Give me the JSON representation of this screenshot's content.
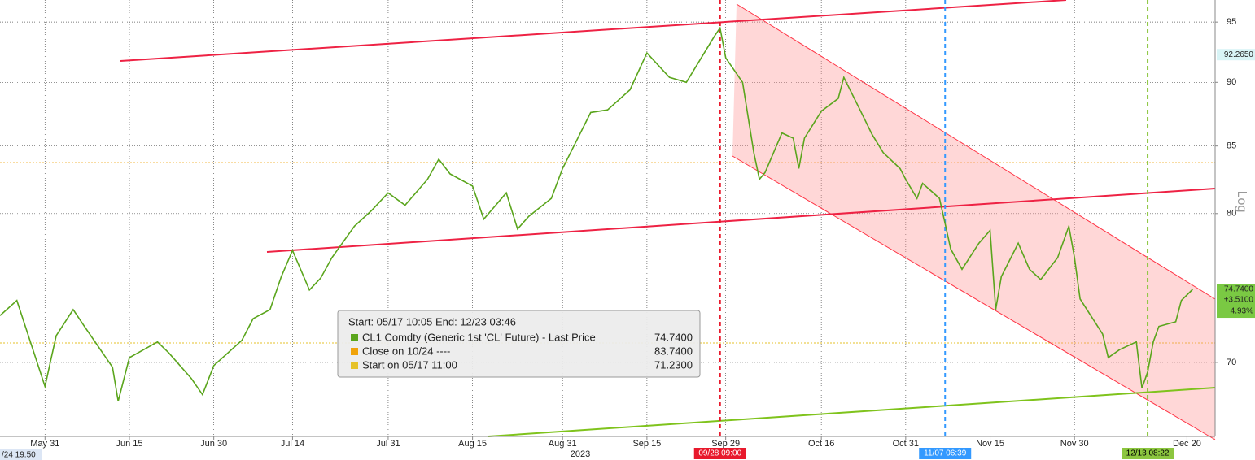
{
  "chart_data": {
    "type": "line",
    "log_scale": true,
    "grid": true,
    "x": [
      "2023-05-23",
      "2023-05-26",
      "2023-05-31",
      "2023-06-01",
      "2023-06-02",
      "2023-06-05",
      "2023-06-07",
      "2023-06-12",
      "2023-06-13",
      "2023-06-15",
      "2023-06-20",
      "2023-06-22",
      "2023-06-26",
      "2023-06-28",
      "2023-06-30",
      "2023-07-05",
      "2023-07-07",
      "2023-07-10",
      "2023-07-12",
      "2023-07-14",
      "2023-07-17",
      "2023-07-19",
      "2023-07-21",
      "2023-07-25",
      "2023-07-28",
      "2023-07-31",
      "2023-08-03",
      "2023-08-07",
      "2023-08-09",
      "2023-08-11",
      "2023-08-15",
      "2023-08-17",
      "2023-08-21",
      "2023-08-23",
      "2023-08-25",
      "2023-08-29",
      "2023-08-31",
      "2023-09-05",
      "2023-09-08",
      "2023-09-12",
      "2023-09-14",
      "2023-09-15",
      "2023-09-19",
      "2023-09-22",
      "2023-09-27",
      "2023-09-28",
      "2023-09-29",
      "2023-10-02",
      "2023-10-04",
      "2023-10-05",
      "2023-10-06",
      "2023-10-09",
      "2023-10-11",
      "2023-10-12",
      "2023-10-13",
      "2023-10-16",
      "2023-10-19",
      "2023-10-20",
      "2023-10-23",
      "2023-10-25",
      "2023-10-27",
      "2023-10-30",
      "2023-10-31",
      "2023-11-02",
      "2023-11-03",
      "2023-11-06",
      "2023-11-07",
      "2023-11-08",
      "2023-11-10",
      "2023-11-13",
      "2023-11-15",
      "2023-11-16",
      "2023-11-17",
      "2023-11-20",
      "2023-11-22",
      "2023-11-24",
      "2023-11-27",
      "2023-11-29",
      "2023-11-30",
      "2023-12-01",
      "2023-12-05",
      "2023-12-06",
      "2023-12-08",
      "2023-12-11",
      "2023-12-12",
      "2023-12-13",
      "2023-12-14",
      "2023-12-15",
      "2023-12-18",
      "2023-12-19",
      "2023-12-21"
    ],
    "series": [
      {
        "name": "CL1 Comdty (Generic 1st 'CL' Future) - Last Price",
        "color": "#5aa51c",
        "values": [
          73.0,
          74.0,
          68.5,
          70.1,
          71.7,
          73.4,
          72.3,
          69.7,
          67.6,
          70.3,
          71.3,
          70.6,
          69.0,
          68.0,
          69.8,
          71.4,
          72.8,
          73.4,
          75.6,
          77.4,
          74.7,
          75.5,
          76.9,
          79.1,
          80.2,
          81.5,
          80.6,
          82.5,
          84.0,
          82.9,
          82.0,
          79.6,
          81.5,
          78.9,
          79.8,
          81.1,
          83.3,
          87.6,
          87.8,
          89.4,
          91.4,
          92.4,
          90.4,
          90.0,
          93.8,
          94.5,
          92.0,
          90.0,
          84.5,
          82.5,
          83.0,
          86.0,
          85.6,
          83.3,
          85.6,
          87.7,
          88.7,
          90.4,
          87.7,
          85.9,
          84.5,
          83.3,
          82.5,
          81.1,
          82.2,
          81.1,
          79.3,
          77.5,
          76.1,
          77.9,
          78.8,
          73.4,
          75.6,
          77.9,
          76.1,
          75.4,
          76.9,
          79.1,
          76.9,
          74.1,
          71.8,
          70.3,
          70.8,
          71.3,
          68.4,
          69.4,
          71.3,
          72.3,
          72.6,
          74.0,
          74.74
        ],
        "last_value": {
          "value": 74.74,
          "label": "74.7400"
        },
        "change": {
          "value": 3.51,
          "label": "+3.5100"
        },
        "change_pct": {
          "value": 4.93,
          "label": "4.93%"
        }
      }
    ],
    "reference_lines": [
      {
        "name": "Close on 10/24 ----",
        "color": "#f0a30a",
        "value": {
          "value": 83.74,
          "label": "83.7400"
        }
      },
      {
        "name": "Start on 05/17 11:00",
        "color": "#e6c229",
        "value": {
          "value": 71.23,
          "label": "71.2300"
        }
      }
    ],
    "legend_header": "Start: 05/17 10:05 End: 12/23 03:46",
    "markers": [
      {
        "x": "2023-09-28",
        "label": "09/28 09:00",
        "color": "#e8192c"
      },
      {
        "x": "2023-11-07",
        "label": "11/07 06:39",
        "color": "#3399ff"
      },
      {
        "x": "2023-12-13",
        "label": "12/13 08:22",
        "color": "#8cc63f"
      }
    ],
    "study_label": {
      "value": 92.265,
      "label": "92.2650"
    },
    "crosshair_label": "/24 19:50",
    "year_label": "2023",
    "y_axis_label": "Log",
    "xlim": [
      "2023-05-23",
      "2023-12-25"
    ],
    "xticks": [
      {
        "value": "2023-05-31",
        "label": "May 31"
      },
      {
        "value": "2023-06-15",
        "label": "Jun 15"
      },
      {
        "value": "2023-06-30",
        "label": "Jun 30"
      },
      {
        "value": "2023-07-14",
        "label": "Jul 14"
      },
      {
        "value": "2023-07-31",
        "label": "Jul 31"
      },
      {
        "value": "2023-08-15",
        "label": "Aug 15"
      },
      {
        "value": "2023-08-31",
        "label": "Aug 31"
      },
      {
        "value": "2023-09-15",
        "label": "Sep 15"
      },
      {
        "value": "2023-09-29",
        "label": "Sep 29"
      },
      {
        "value": "2023-10-16",
        "label": "Oct 16"
      },
      {
        "value": "2023-10-31",
        "label": "Oct 31"
      },
      {
        "value": "2023-11-15",
        "label": "Nov 15"
      },
      {
        "value": "2023-11-30",
        "label": "Nov 30"
      },
      {
        "value": "2023-12-20",
        "label": "Dec 20"
      }
    ],
    "ylim": [
      65.5,
      96.9
    ],
    "yticks": [
      70,
      80,
      85,
      90,
      95
    ]
  }
}
